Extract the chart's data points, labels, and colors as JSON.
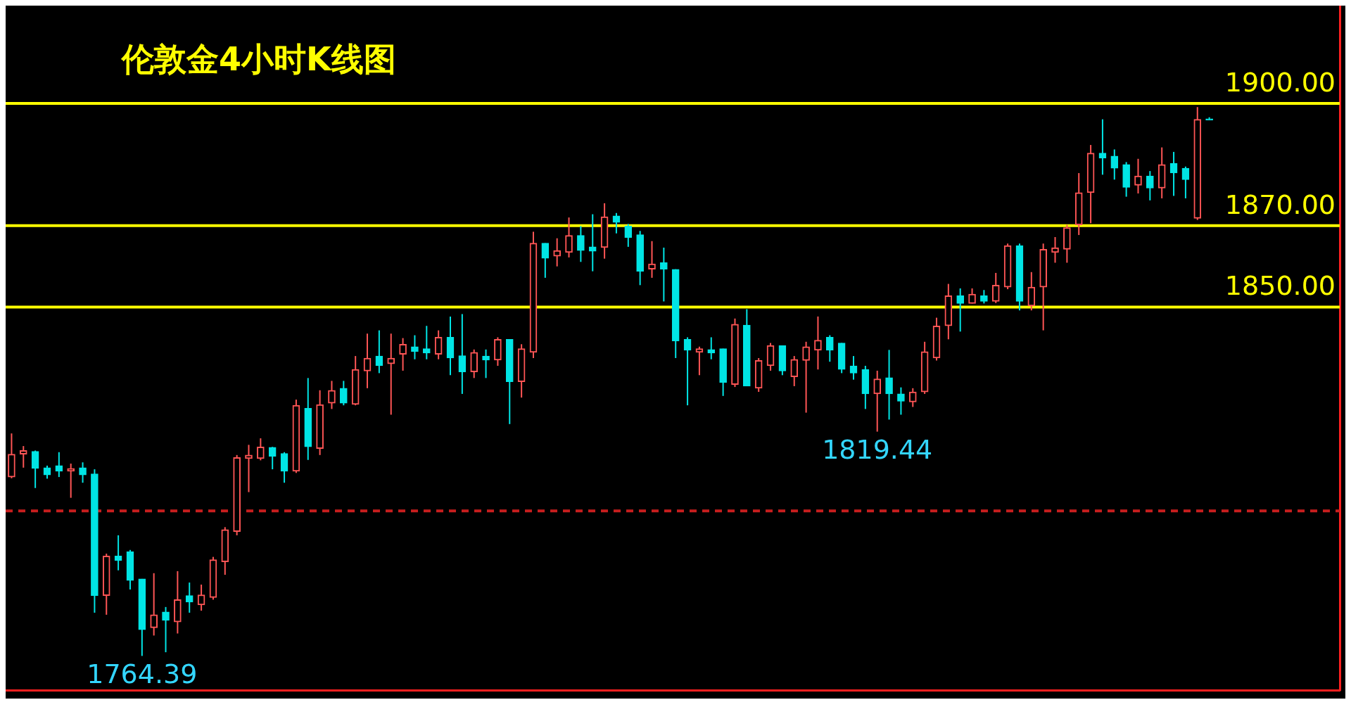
{
  "chart_data": {
    "type": "candlestick",
    "title": "伦敦金4小时K线图",
    "categories": [
      null,
      null,
      null,
      null,
      null,
      null,
      null,
      null,
      null,
      null,
      null,
      null,
      null,
      null,
      null,
      null,
      null,
      null,
      null,
      null,
      null,
      null,
      null,
      null,
      null,
      null,
      null,
      null,
      null,
      null,
      null,
      null,
      null,
      null,
      null,
      null,
      null,
      null,
      null,
      null,
      null,
      null,
      null,
      null,
      null,
      null,
      null,
      null,
      null,
      null,
      null,
      null,
      null,
      null,
      null,
      null,
      null,
      null,
      null,
      null,
      null,
      null,
      null,
      null,
      null,
      null,
      null,
      null,
      null,
      null,
      null,
      null,
      null,
      null,
      null,
      null,
      null,
      null,
      null,
      null,
      null,
      null,
      null,
      null,
      null,
      null,
      null,
      null,
      null,
      null,
      null,
      null,
      null,
      null,
      null,
      null,
      null,
      null,
      null,
      null,
      null,
      null
    ],
    "ohlc": [
      [
        1808.3,
        1819,
        1808,
        1813.9
      ],
      [
        1813.9,
        1815.9,
        1810.6,
        1814.8
      ],
      [
        1814.6,
        1814.8,
        1805.6,
        1810.4
      ],
      [
        1810.6,
        1811.1,
        1807.9,
        1808.8
      ],
      [
        1811.1,
        1814.4,
        1808.3,
        1809.7
      ],
      [
        1809.7,
        1811.6,
        1803.2,
        1810.4
      ],
      [
        1810.6,
        1811.9,
        1806.9,
        1808.8
      ],
      [
        1809.1,
        1810.2,
        1775,
        1779.2
      ],
      [
        1779.2,
        1789.5,
        1774.5,
        1788.9
      ],
      [
        1788.9,
        1794,
        1785.4,
        1787.8
      ],
      [
        1790,
        1790.4,
        1780.7,
        1782.9
      ],
      [
        1783.3,
        1783.3,
        1764.39,
        1770.8
      ],
      [
        1771.3,
        1784.7,
        1769.4,
        1774.5
      ],
      [
        1775.2,
        1776.4,
        1765.3,
        1773.1
      ],
      [
        1772.7,
        1785.2,
        1769.9,
        1778.2
      ],
      [
        1779.2,
        1782.4,
        1775,
        1777.6
      ],
      [
        1776.9,
        1781.9,
        1775.5,
        1779.4
      ],
      [
        1778.7,
        1788.7,
        1778.2,
        1788
      ],
      [
        1787.5,
        1796,
        1784.3,
        1795.4
      ],
      [
        1794.9,
        1813.7,
        1794,
        1813.1
      ],
      [
        1812.8,
        1816.2,
        1804.6,
        1813.7
      ],
      [
        1812.8,
        1817.8,
        1812.4,
        1815.7
      ],
      [
        1815.6,
        1815.7,
        1810.2,
        1813.4
      ],
      [
        1814.1,
        1814.4,
        1806.9,
        1809.7
      ],
      [
        1809.7,
        1827.3,
        1809.3,
        1825.9
      ],
      [
        1825.2,
        1832.6,
        1812.5,
        1815.7
      ],
      [
        1815.3,
        1829.6,
        1813.7,
        1826.1
      ],
      [
        1826.4,
        1831.9,
        1825,
        1829.6
      ],
      [
        1830.1,
        1831.9,
        1825.9,
        1826.4
      ],
      [
        1826.1,
        1838,
        1825.9,
        1834.7
      ],
      [
        1834.3,
        1843.5,
        1830.1,
        1837.5
      ],
      [
        1838,
        1844.3,
        1833.8,
        1835.6
      ],
      [
        1836.1,
        1843.5,
        1823.6,
        1837.5
      ],
      [
        1838.4,
        1842.4,
        1834.4,
        1840.9
      ],
      [
        1840.3,
        1843.1,
        1837.2,
        1839.1
      ],
      [
        1839.8,
        1845.4,
        1837.2,
        1838.7
      ],
      [
        1838.4,
        1844.3,
        1837.2,
        1842.6
      ],
      [
        1842.6,
        1847.7,
        1833.3,
        1837.5
      ],
      [
        1838.1,
        1848.3,
        1828.7,
        1834.1
      ],
      [
        1834.1,
        1839.6,
        1832.6,
        1838.9
      ],
      [
        1838,
        1839.6,
        1832.6,
        1837
      ],
      [
        1837,
        1842.6,
        1835.6,
        1842.1
      ],
      [
        1842.1,
        1842.1,
        1821.3,
        1831.7
      ],
      [
        1831.7,
        1840.9,
        1827.8,
        1839.8
      ],
      [
        1838.9,
        1868.5,
        1837.5,
        1865.7
      ],
      [
        1865.7,
        1865.7,
        1857.2,
        1862
      ],
      [
        1862.5,
        1866.9,
        1860,
        1863.9
      ],
      [
        1863.4,
        1872,
        1862.2,
        1867.6
      ],
      [
        1867.6,
        1869.9,
        1861.1,
        1863.9
      ],
      [
        1864.8,
        1872.8,
        1858.8,
        1863.7
      ],
      [
        1864.6,
        1875.5,
        1861.9,
        1872.2
      ],
      [
        1872.4,
        1873.1,
        1868.1,
        1870.8
      ],
      [
        1869.9,
        1870.4,
        1864.8,
        1867.1
      ],
      [
        1867.8,
        1868.7,
        1855.4,
        1858.8
      ],
      [
        1859.3,
        1866.2,
        1857.2,
        1860.6
      ],
      [
        1860.9,
        1864.6,
        1851.4,
        1859.3
      ],
      [
        1859.3,
        1859.3,
        1837.5,
        1841.7
      ],
      [
        1842.1,
        1842.6,
        1825.9,
        1839.4
      ],
      [
        1838.9,
        1840.3,
        1833.3,
        1839.8
      ],
      [
        1839.6,
        1842.6,
        1837.2,
        1838.7
      ],
      [
        1839.8,
        1839.8,
        1828.2,
        1831.5
      ],
      [
        1831,
        1847.2,
        1830.4,
        1845.8
      ],
      [
        1845.6,
        1849.5,
        1830.6,
        1830.6
      ],
      [
        1830.1,
        1837.5,
        1829.2,
        1836.9
      ],
      [
        1835.6,
        1841.2,
        1834.4,
        1840.6
      ],
      [
        1840.6,
        1840.6,
        1833.3,
        1834.3
      ],
      [
        1832.9,
        1838,
        1830.6,
        1837.2
      ],
      [
        1836.9,
        1841.5,
        1824.1,
        1840.3
      ],
      [
        1839.4,
        1847.7,
        1834.7,
        1841.9
      ],
      [
        1842.6,
        1843.1,
        1836.6,
        1839.4
      ],
      [
        1841.2,
        1841.2,
        1833.8,
        1834.7
      ],
      [
        1835.6,
        1838,
        1832.2,
        1833.8
      ],
      [
        1834.7,
        1835.6,
        1825,
        1828.7
      ],
      [
        1828.7,
        1834.4,
        1819.44,
        1832.4
      ],
      [
        1832.7,
        1839.5,
        1822.4,
        1828.7
      ],
      [
        1828.7,
        1830.3,
        1823.6,
        1826.9
      ],
      [
        1826.7,
        1830.1,
        1825.5,
        1829.2
      ],
      [
        1829.2,
        1841.5,
        1828.7,
        1839.1
      ],
      [
        1837.5,
        1847.4,
        1836.9,
        1845.4
      ],
      [
        1845.4,
        1855.7,
        1842.1,
        1852.8
      ],
      [
        1852.8,
        1854.6,
        1844,
        1850.9
      ],
      [
        1850.9,
        1854.6,
        1850.9,
        1853.2
      ],
      [
        1852.8,
        1854.2,
        1850.9,
        1851.4
      ],
      [
        1851.4,
        1858.4,
        1851,
        1855.4
      ],
      [
        1854.9,
        1865.6,
        1854.4,
        1865.1
      ],
      [
        1865.1,
        1865.6,
        1849.2,
        1851.4
      ],
      [
        1850.3,
        1858.6,
        1849.2,
        1854.9
      ],
      [
        1854.9,
        1865.6,
        1844.3,
        1864.2
      ],
      [
        1863.4,
        1867.2,
        1860.9,
        1864.6
      ],
      [
        1864.2,
        1870.2,
        1860.9,
        1869.5
      ],
      [
        1870.2,
        1882.9,
        1867.7,
        1878.1
      ],
      [
        1878.1,
        1889.8,
        1870.6,
        1887.8
      ],
      [
        1887.8,
        1896.1,
        1882.5,
        1886.6
      ],
      [
        1887.1,
        1888.7,
        1881.3,
        1884.1
      ],
      [
        1885,
        1885.6,
        1877.1,
        1879.4
      ],
      [
        1879.9,
        1886.4,
        1877.9,
        1882.2
      ],
      [
        1882.2,
        1883.4,
        1876.2,
        1879.2
      ],
      [
        1879.2,
        1889.2,
        1876.7,
        1885
      ],
      [
        1885.3,
        1888.1,
        1877.3,
        1882.9
      ],
      [
        1884.1,
        1884.5,
        1876.7,
        1881.3
      ],
      [
        1871.8,
        1899.1,
        1871.4,
        1896.1
      ],
      [
        1896.1,
        1896.6,
        1895.9,
        1895.9
      ]
    ],
    "colors": [
      "#ff5555",
      "#ff5555",
      "#00e5e5",
      "#00e5e5",
      "#00e5e5",
      "#ff5555",
      "#00e5e5",
      "#00e5e5",
      "#ff5555",
      "#00e5e5",
      "#00e5e5",
      "#00e5e5",
      "#ff5555",
      "#00e5e5",
      "#ff5555",
      "#00e5e5",
      "#ff5555",
      "#ff5555",
      "#ff5555",
      "#ff5555",
      "#ff5555",
      "#ff5555",
      "#00e5e5",
      "#00e5e5",
      "#ff5555",
      "#00e5e5",
      "#ff5555",
      "#ff5555",
      "#00e5e5",
      "#ff5555",
      "#ff5555",
      "#00e5e5",
      "#ff5555",
      "#ff5555",
      "#00e5e5",
      "#00e5e5",
      "#ff5555",
      "#00e5e5",
      "#00e5e5",
      "#ff5555",
      "#00e5e5",
      "#ff5555",
      "#00e5e5",
      "#ff5555",
      "#ff5555",
      "#00e5e5",
      "#ff5555",
      "#ff5555",
      "#00e5e5",
      "#00e5e5",
      "#ff5555",
      "#00e5e5",
      "#00e5e5",
      "#00e5e5",
      "#ff5555",
      "#00e5e5",
      "#00e5e5",
      "#00e5e5",
      "#ff5555",
      "#00e5e5",
      "#00e5e5",
      "#ff5555",
      "#00e5e5",
      "#ff5555",
      "#ff5555",
      "#00e5e5",
      "#ff5555",
      "#ff5555",
      "#ff5555",
      "#00e5e5",
      "#00e5e5",
      "#00e5e5",
      "#00e5e5",
      "#ff5555",
      "#00e5e5",
      "#00e5e5",
      "#ff5555",
      "#ff5555",
      "#ff5555",
      "#ff5555",
      "#00e5e5",
      "#ff5555",
      "#00e5e5",
      "#ff5555",
      "#ff5555",
      "#00e5e5",
      "#ff5555",
      "#ff5555",
      "#ff5555",
      "#ff5555",
      "#ff5555",
      "#ff5555",
      "#00e5e5",
      "#00e5e5",
      "#00e5e5",
      "#ff5555",
      "#00e5e5",
      "#ff5555",
      "#00e5e5",
      "#00e5e5",
      "#ff5555",
      "#00e5e5"
    ],
    "ylim": [
      1756,
      1924
    ],
    "ref_lines": [
      {
        "axis": "y",
        "value": 1900,
        "label": "1900.00",
        "color": "#ffff00"
      },
      {
        "axis": "y",
        "value": 1870,
        "label": "1870.00",
        "color": "#ffff00"
      },
      {
        "axis": "y",
        "value": 1850,
        "label": "1850.00",
        "color": "#ffff00"
      },
      {
        "axis": "y",
        "value": 1800,
        "color": "#c81e1e",
        "line_style": "dashed"
      }
    ],
    "annotations": [
      "1764.39",
      "1819.44"
    ],
    "tick_labels": false
  }
}
